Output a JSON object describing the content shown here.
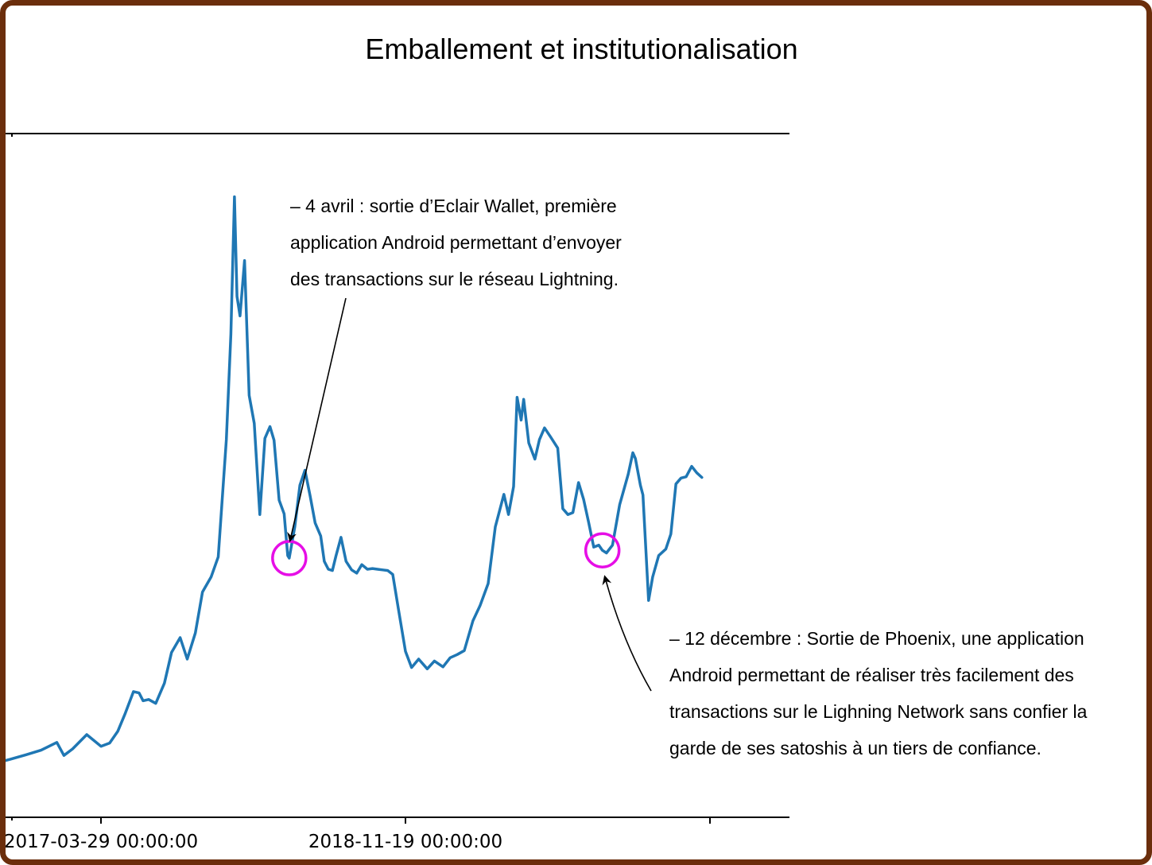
{
  "chart_data": {
    "type": "line",
    "title": "Emballement et institutionalisation",
    "xlabel": "",
    "ylabel": "",
    "x_axis": {
      "type": "date",
      "range": [
        "2016-08-04",
        "2020-07-11"
      ],
      "ticks": [
        {
          "date": "2017-03-29",
          "label": "2017-03-29 00:00:00"
        },
        {
          "date": "2018-11-19",
          "label": "2018-11-19 00:00:00"
        },
        {
          "date": "2020-07-11",
          "label": ""
        }
      ]
    },
    "y_axis": {
      "range": [
        0,
        100
      ],
      "ticks_shown": false,
      "scale": "relative"
    },
    "grid": false,
    "legend": "none",
    "series": [
      {
        "color": "#1f77b4",
        "points": [
          [
            "2016-08-04",
            7.6
          ],
          [
            "2016-09-01",
            8.3
          ],
          [
            "2016-10-01",
            8.9
          ],
          [
            "2016-11-01",
            9.6
          ],
          [
            "2016-12-01",
            10.3
          ],
          [
            "2017-01-01",
            11.5
          ],
          [
            "2017-01-15",
            9.5
          ],
          [
            "2017-02-01",
            10.5
          ],
          [
            "2017-03-01",
            12.7
          ],
          [
            "2017-03-29",
            10.9
          ],
          [
            "2017-04-15",
            11.4
          ],
          [
            "2017-05-01",
            13.2
          ],
          [
            "2017-05-15",
            15.8
          ],
          [
            "2017-06-01",
            19.3
          ],
          [
            "2017-06-12",
            19.1
          ],
          [
            "2017-06-20",
            17.9
          ],
          [
            "2017-07-01",
            18.1
          ],
          [
            "2017-07-15",
            17.5
          ],
          [
            "2017-08-01",
            20.6
          ],
          [
            "2017-08-15",
            25.3
          ],
          [
            "2017-09-01",
            27.6
          ],
          [
            "2017-09-15",
            24.3
          ],
          [
            "2017-10-01",
            28.3
          ],
          [
            "2017-10-15",
            34.6
          ],
          [
            "2017-11-01",
            36.9
          ],
          [
            "2017-11-15",
            40.0
          ],
          [
            "2017-12-01",
            58.0
          ],
          [
            "2017-12-10",
            74.2
          ],
          [
            "2017-12-17",
            95.3
          ],
          [
            "2017-12-22",
            80.0
          ],
          [
            "2017-12-28",
            77.0
          ],
          [
            "2018-01-06",
            85.5
          ],
          [
            "2018-01-15",
            64.8
          ],
          [
            "2018-01-25",
            60.5
          ],
          [
            "2018-02-05",
            46.5
          ],
          [
            "2018-02-15",
            58.2
          ],
          [
            "2018-02-25",
            60.0
          ],
          [
            "2018-03-05",
            57.9
          ],
          [
            "2018-03-15",
            48.7
          ],
          [
            "2018-03-25",
            46.6
          ],
          [
            "2018-04-01",
            40.2
          ],
          [
            "2018-04-04",
            39.8
          ],
          [
            "2018-04-15",
            44.6
          ],
          [
            "2018-04-25",
            51.0
          ],
          [
            "2018-05-05",
            53.3
          ],
          [
            "2018-05-15",
            49.4
          ],
          [
            "2018-05-25",
            45.2
          ],
          [
            "2018-06-05",
            43.2
          ],
          [
            "2018-06-12",
            39.3
          ],
          [
            "2018-06-20",
            38.1
          ],
          [
            "2018-06-28",
            37.9
          ],
          [
            "2018-07-05",
            40.1
          ],
          [
            "2018-07-15",
            43.0
          ],
          [
            "2018-07-25",
            39.3
          ],
          [
            "2018-08-05",
            38.0
          ],
          [
            "2018-08-15",
            37.5
          ],
          [
            "2018-08-25",
            38.8
          ],
          [
            "2018-09-05",
            38.1
          ],
          [
            "2018-09-15",
            38.2
          ],
          [
            "2018-09-25",
            38.1
          ],
          [
            "2018-10-05",
            38.0
          ],
          [
            "2018-10-15",
            37.9
          ],
          [
            "2018-10-25",
            37.3
          ],
          [
            "2018-11-05",
            32.0
          ],
          [
            "2018-11-19",
            25.5
          ],
          [
            "2018-12-01",
            23.0
          ],
          [
            "2018-12-15",
            24.3
          ],
          [
            "2019-01-01",
            22.8
          ],
          [
            "2019-01-15",
            24.0
          ],
          [
            "2019-02-01",
            23.1
          ],
          [
            "2019-02-15",
            24.5
          ],
          [
            "2019-03-01",
            25.0
          ],
          [
            "2019-03-15",
            25.6
          ],
          [
            "2019-04-01",
            30.2
          ],
          [
            "2019-04-15",
            32.5
          ],
          [
            "2019-05-01",
            35.9
          ],
          [
            "2019-05-15",
            44.6
          ],
          [
            "2019-06-01",
            49.6
          ],
          [
            "2019-06-10",
            46.5
          ],
          [
            "2019-06-20",
            50.8
          ],
          [
            "2019-06-27",
            64.5
          ],
          [
            "2019-07-05",
            61.0
          ],
          [
            "2019-07-10",
            64.2
          ],
          [
            "2019-07-20",
            57.5
          ],
          [
            "2019-08-01",
            55.0
          ],
          [
            "2019-08-10",
            58.0
          ],
          [
            "2019-08-20",
            59.8
          ],
          [
            "2019-09-01",
            58.4
          ],
          [
            "2019-09-15",
            56.7
          ],
          [
            "2019-09-25",
            47.4
          ],
          [
            "2019-10-05",
            46.5
          ],
          [
            "2019-10-15",
            46.8
          ],
          [
            "2019-10-26",
            51.4
          ],
          [
            "2019-11-05",
            48.8
          ],
          [
            "2019-11-15",
            45.3
          ],
          [
            "2019-11-25",
            41.5
          ],
          [
            "2019-12-05",
            41.8
          ],
          [
            "2019-12-12",
            41.0
          ],
          [
            "2019-12-20",
            40.6
          ],
          [
            "2020-01-01",
            41.8
          ],
          [
            "2020-01-15",
            48.0
          ],
          [
            "2020-02-01",
            52.7
          ],
          [
            "2020-02-10",
            56.0
          ],
          [
            "2020-02-15",
            55.1
          ],
          [
            "2020-02-25",
            51.0
          ],
          [
            "2020-03-01",
            49.5
          ],
          [
            "2020-03-12",
            33.3
          ],
          [
            "2020-03-20",
            36.9
          ],
          [
            "2020-04-01",
            40.2
          ],
          [
            "2020-04-15",
            41.2
          ],
          [
            "2020-04-25",
            43.5
          ],
          [
            "2020-05-05",
            51.2
          ],
          [
            "2020-05-15",
            52.1
          ],
          [
            "2020-05-25",
            52.3
          ],
          [
            "2020-06-05",
            53.9
          ],
          [
            "2020-06-15",
            52.9
          ],
          [
            "2020-06-25",
            52.2
          ]
        ]
      }
    ],
    "annotations": [
      {
        "date": "2018-04-04",
        "lines": [
          "– 4 avril : sortie d’Eclair Wallet, première",
          "application Android permettant d’envoyer",
          "des transactions sur le réseau Lightning."
        ],
        "marker_color": "#e60ee6"
      },
      {
        "date": "2019-12-12",
        "lines": [
          "– 12 décembre : Sortie de Phoenix, une application",
          "Android permettant de réaliser très facilement des",
          "transactions sur le Lighning Network sans confier la",
          "garde de ses satoshis à un tiers de confiance."
        ],
        "marker_color": "#e60ee6"
      }
    ]
  }
}
